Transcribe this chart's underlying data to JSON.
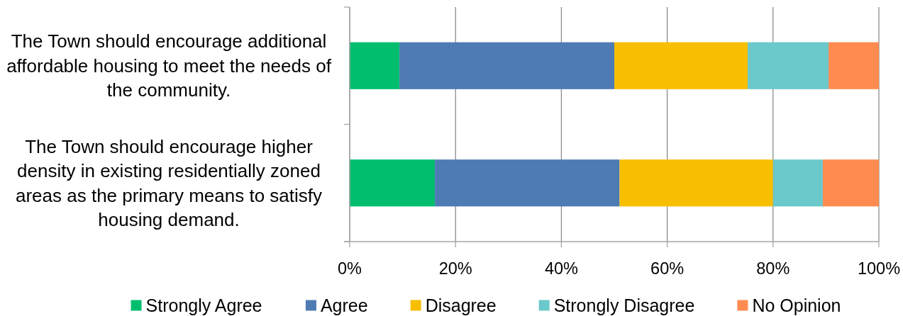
{
  "chart_data": {
    "type": "bar",
    "orientation": "horizontal",
    "stacked": true,
    "categories": [
      "The Town should encourage additional affordable housing to meet the needs of the community.",
      "The Town should encourage higher density in existing residentially zoned areas as the primary means to satisfy housing demand."
    ],
    "series": [
      {
        "name": "Strongly Agree",
        "color": "#00be6e",
        "values": [
          9.4,
          16.1
        ]
      },
      {
        "name": "Agree",
        "color": "#4e7bb4",
        "values": [
          40.6,
          34.9
        ]
      },
      {
        "name": "Disagree",
        "color": "#f8be00",
        "values": [
          25.2,
          29.0
        ]
      },
      {
        "name": "Strongly Disagree",
        "color": "#6bc8cb",
        "values": [
          15.3,
          9.4
        ]
      },
      {
        "name": "No Opinion",
        "color": "#ff8b50",
        "values": [
          9.5,
          10.6
        ]
      }
    ],
    "xlim": [
      0,
      100
    ],
    "xticks": [
      {
        "value": 0,
        "label": "0%"
      },
      {
        "value": 20,
        "label": "20%"
      },
      {
        "value": 40,
        "label": "40%"
      },
      {
        "value": 60,
        "label": "60%"
      },
      {
        "value": 80,
        "label": "80%"
      },
      {
        "value": 100,
        "label": "100%"
      }
    ],
    "grid": "x",
    "legend": "bottom"
  }
}
